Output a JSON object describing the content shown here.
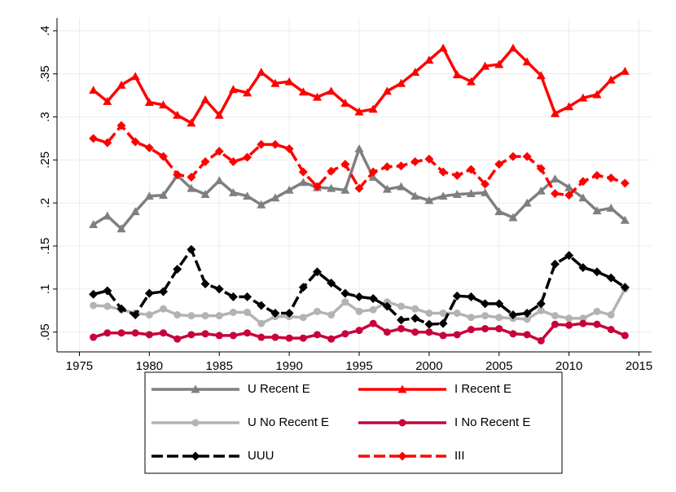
{
  "chart_data": {
    "type": "line",
    "x": [
      1976,
      1977,
      1978,
      1979,
      1980,
      1981,
      1982,
      1983,
      1984,
      1985,
      1986,
      1987,
      1988,
      1989,
      1990,
      1991,
      1992,
      1993,
      1994,
      1995,
      1996,
      1997,
      1998,
      1999,
      2000,
      2001,
      2002,
      2003,
      2004,
      2005,
      2006,
      2007,
      2008,
      2009,
      2010,
      2011,
      2012,
      2013,
      2014
    ],
    "xlim": [
      1973.4,
      2015.9
    ],
    "xticks": [
      1975,
      1980,
      1985,
      1990,
      1995,
      2000,
      2005,
      2010,
      2015
    ],
    "ylim": [
      0.027,
      0.415
    ],
    "yticks": [
      {
        "value": 0.05,
        "label": ".05"
      },
      {
        "value": 0.1,
        "label": ".1"
      },
      {
        "value": 0.15,
        "label": ".15"
      },
      {
        "value": 0.2,
        "label": ".2"
      },
      {
        "value": 0.25,
        "label": ".25"
      },
      {
        "value": 0.3,
        "label": ".3"
      },
      {
        "value": 0.35,
        "label": ".35"
      },
      {
        "value": 0.4,
        "label": ".4"
      }
    ],
    "grid": true,
    "legend": "bottom",
    "series": [
      {
        "name": "U Recent E",
        "color": "#7f7f7f",
        "marker": "triangle",
        "dash": false,
        "values": [
          0.175,
          0.185,
          0.17,
          0.19,
          0.208,
          0.209,
          0.232,
          0.217,
          0.21,
          0.226,
          0.212,
          0.208,
          0.198,
          0.206,
          0.215,
          0.224,
          0.218,
          0.217,
          0.215,
          0.263,
          0.23,
          0.216,
          0.219,
          0.208,
          0.203,
          0.208,
          0.21,
          0.211,
          0.212,
          0.19,
          0.183,
          0.2,
          0.214,
          0.228,
          0.218,
          0.206,
          0.191,
          0.194,
          0.18
        ]
      },
      {
        "name": "I Recent E",
        "color": "#ff0000",
        "marker": "triangle",
        "dash": false,
        "values": [
          0.331,
          0.318,
          0.337,
          0.347,
          0.317,
          0.314,
          0.302,
          0.293,
          0.32,
          0.302,
          0.332,
          0.328,
          0.352,
          0.339,
          0.341,
          0.329,
          0.323,
          0.33,
          0.316,
          0.306,
          0.309,
          0.33,
          0.339,
          0.352,
          0.366,
          0.38,
          0.349,
          0.341,
          0.359,
          0.361,
          0.38,
          0.364,
          0.348,
          0.304,
          0.312,
          0.322,
          0.326,
          0.343,
          0.353
        ]
      },
      {
        "name": "U No Recent E",
        "color": "#b3b3b3",
        "marker": "circle",
        "dash": false,
        "values": [
          0.081,
          0.08,
          0.076,
          0.072,
          0.07,
          0.077,
          0.07,
          0.069,
          0.069,
          0.069,
          0.073,
          0.073,
          0.06,
          0.068,
          0.068,
          0.067,
          0.074,
          0.07,
          0.085,
          0.074,
          0.076,
          0.085,
          0.08,
          0.077,
          0.072,
          0.072,
          0.072,
          0.067,
          0.069,
          0.067,
          0.066,
          0.065,
          0.075,
          0.069,
          0.066,
          0.066,
          0.074,
          0.07,
          0.1
        ]
      },
      {
        "name": "I No Recent E",
        "color": "#c8003c",
        "marker": "circle",
        "dash": false,
        "values": [
          0.044,
          0.049,
          0.049,
          0.049,
          0.047,
          0.049,
          0.042,
          0.047,
          0.048,
          0.046,
          0.046,
          0.049,
          0.044,
          0.044,
          0.043,
          0.043,
          0.047,
          0.042,
          0.048,
          0.052,
          0.06,
          0.05,
          0.054,
          0.05,
          0.05,
          0.046,
          0.047,
          0.053,
          0.054,
          0.054,
          0.048,
          0.047,
          0.04,
          0.059,
          0.058,
          0.06,
          0.059,
          0.053,
          0.046
        ]
      },
      {
        "name": "UUU",
        "color": "#000000",
        "marker": "diamond",
        "dash": true,
        "values": [
          0.094,
          0.098,
          0.077,
          0.07,
          0.095,
          0.097,
          0.123,
          0.146,
          0.106,
          0.1,
          0.091,
          0.091,
          0.081,
          0.072,
          0.072,
          0.102,
          0.12,
          0.107,
          0.095,
          0.091,
          0.089,
          0.08,
          0.064,
          0.066,
          0.059,
          0.06,
          0.092,
          0.091,
          0.083,
          0.083,
          0.07,
          0.072,
          0.083,
          0.129,
          0.139,
          0.125,
          0.12,
          0.113,
          0.102
        ]
      },
      {
        "name": "III",
        "color": "#ff0000",
        "marker": "diamond",
        "dash": true,
        "values": [
          0.275,
          0.27,
          0.29,
          0.271,
          0.264,
          0.254,
          0.233,
          0.23,
          0.248,
          0.26,
          0.248,
          0.253,
          0.268,
          0.268,
          0.263,
          0.236,
          0.219,
          0.237,
          0.245,
          0.217,
          0.236,
          0.242,
          0.243,
          0.248,
          0.251,
          0.236,
          0.232,
          0.239,
          0.222,
          0.245,
          0.254,
          0.254,
          0.24,
          0.211,
          0.209,
          0.225,
          0.232,
          0.229,
          0.223
        ]
      }
    ]
  }
}
